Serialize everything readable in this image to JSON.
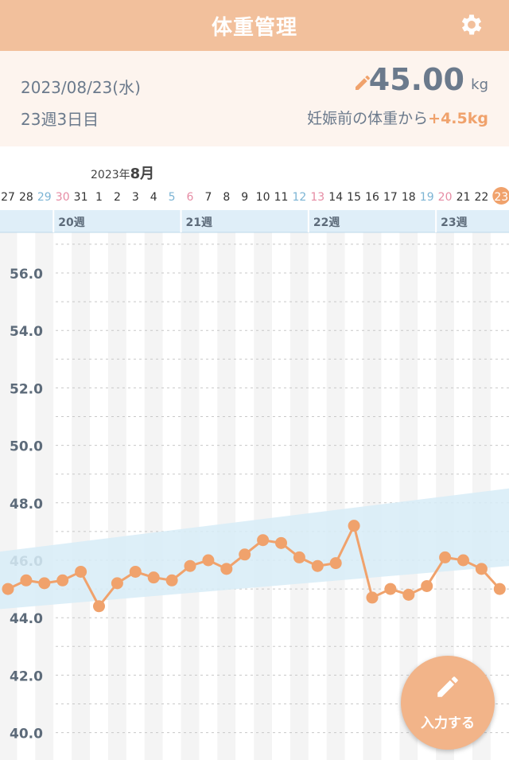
{
  "header": {
    "title": "体重管理",
    "settings_icon": "gear-icon"
  },
  "summary": {
    "date": "2023/08/23(水)",
    "week": "23週3日目",
    "weight": "45.00",
    "unit": "kg",
    "diff_prefix": "妊娠前の体重から",
    "diff_value": "+4.5kg",
    "edit_icon": "pencil-icon"
  },
  "calendar": {
    "year_label": "2023年",
    "month_label": "8月",
    "days": [
      "27",
      "28",
      "29",
      "30",
      "31",
      "1",
      "2",
      "3",
      "4",
      "5",
      "6",
      "7",
      "8",
      "9",
      "10",
      "11",
      "12",
      "13",
      "14",
      "15",
      "16",
      "17",
      "18",
      "19",
      "20",
      "21",
      "22",
      "23"
    ],
    "weeks": [
      "20週",
      "21週",
      "22週",
      "23週"
    ]
  },
  "colors": {
    "header": "#f2c09c",
    "line": "#f0a26c",
    "band": "#d7ecf7",
    "saturday": "#7cb4d4",
    "sunday": "#e68ca4",
    "today_circle": "#f0a26c"
  },
  "chart_data": {
    "type": "line",
    "x": [
      "7/27",
      "7/28",
      "7/29",
      "7/30",
      "7/31",
      "8/1",
      "8/2",
      "8/3",
      "8/4",
      "8/5",
      "8/6",
      "8/7",
      "8/8",
      "8/9",
      "8/10",
      "8/11",
      "8/12",
      "8/13",
      "8/14",
      "8/15",
      "8/16",
      "8/17",
      "8/18",
      "8/19",
      "8/20",
      "8/21",
      "8/22",
      "8/23"
    ],
    "series": [
      {
        "values": [
          45.0,
          45.3,
          45.2,
          45.3,
          45.6,
          44.4,
          45.2,
          45.6,
          45.4,
          45.3,
          45.8,
          46.0,
          45.7,
          46.2,
          46.7,
          46.6,
          46.1,
          45.8,
          45.9,
          47.2,
          44.7,
          45.0,
          44.8,
          45.1,
          46.1,
          46.0,
          45.7,
          45.0
        ]
      }
    ],
    "band": {
      "start": [
        44.3,
        46.3
      ],
      "end": [
        45.8,
        48.5
      ]
    },
    "yticks": [
      "56.0",
      "54.0",
      "52.0",
      "50.0",
      "48.0",
      "46.0",
      "44.0",
      "42.0",
      "40.0"
    ],
    "ylim": [
      39.6,
      57.5
    ],
    "grid": true
  },
  "fab": {
    "label": "入力する",
    "icon": "pencil-icon"
  }
}
